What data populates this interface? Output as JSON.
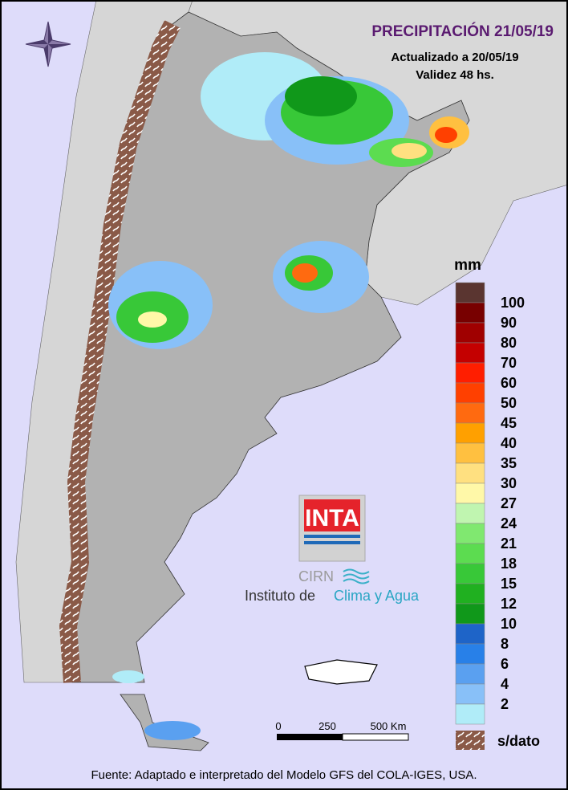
{
  "header": {
    "title": "PRECIPITACIÓN 21/05/19",
    "updated": "Actualizado a 20/05/19",
    "validity": "Validez 48 hs."
  },
  "legend": {
    "unit": "mm",
    "levels": [
      100,
      90,
      80,
      70,
      60,
      50,
      45,
      40,
      35,
      30,
      27,
      24,
      21,
      18,
      15,
      12,
      10,
      8,
      6,
      4,
      2
    ],
    "colors": [
      "#5a3530",
      "#780000",
      "#a00000",
      "#c40000",
      "#ff1e00",
      "#ff4000",
      "#ff6a10",
      "#ffa000",
      "#ffc040",
      "#ffe080",
      "#fff8a8",
      "#c0f5b0",
      "#80e870",
      "#5cdc50",
      "#38c838",
      "#20b020",
      "#10981a",
      "#1e64c8",
      "#2880e8",
      "#5aa0f0",
      "#88c0f8",
      "#b0ecf8"
    ],
    "no_data": "s/dato"
  },
  "scale": {
    "labels": [
      "0",
      "250",
      "500 Km"
    ]
  },
  "logo": {
    "brand": "INTA",
    "center": "CIRN",
    "institute": "Instituto de",
    "institute_name": "Clima y Agua"
  },
  "footer": {
    "source": "Fuente: Adaptado e interpretado del Modelo GFS del COLA-IGES, USA."
  }
}
